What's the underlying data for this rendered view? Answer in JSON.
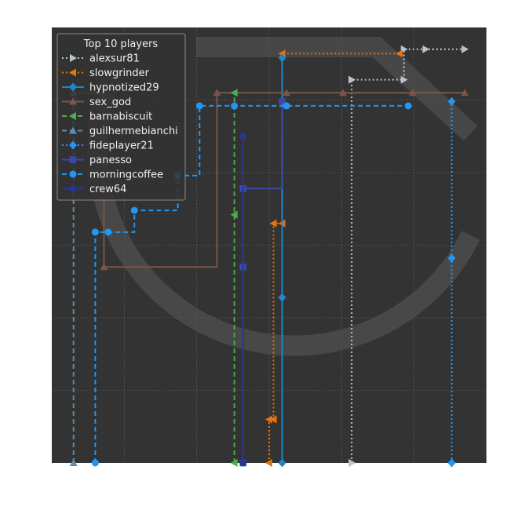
{
  "chart_data": {
    "type": "line",
    "title": "",
    "xlabel": "",
    "ylabel": "",
    "grid": true,
    "background_color": "#333333",
    "legend": {
      "title": "Top 10 players",
      "placement": "top-left"
    },
    "xlim": [
      0,
      100
    ],
    "ylim": [
      0,
      100
    ],
    "series": [
      {
        "name": "alexsur81",
        "color": "#b8c4cc",
        "style": "dotted",
        "marker": "triangle-right",
        "x": [
          69,
          69,
          81,
          81,
          86,
          95
        ],
        "y": [
          0,
          88,
          88,
          95,
          95,
          95
        ]
      },
      {
        "name": "slowgrinder",
        "color": "#e8720c",
        "style": "dotted",
        "marker": "triangle-left",
        "x": [
          50,
          50,
          51,
          51,
          53,
          53,
          80
        ],
        "y": [
          0,
          10,
          10,
          55,
          55,
          94,
          94
        ]
      },
      {
        "name": "hypnotized29",
        "color": "#1e88c8",
        "style": "solid",
        "marker": "diamond",
        "x": [
          53,
          53,
          53,
          53
        ],
        "y": [
          0,
          38,
          83,
          93
        ]
      },
      {
        "name": "sex_god",
        "color": "#7a5548",
        "style": "solid",
        "marker": "triangle-up",
        "x": [
          5,
          12,
          12,
          38,
          54,
          67,
          83,
          95
        ],
        "y": [
          85,
          85,
          45,
          85,
          85,
          85,
          85,
          85
        ]
      },
      {
        "name": "barnabiscuit",
        "color": "#4cae4c",
        "style": "dashed",
        "marker": "triangle-left",
        "x": [
          42,
          42,
          42
        ],
        "y": [
          0,
          57,
          85
        ]
      },
      {
        "name": "guilhermebianchi",
        "color": "#5c8da8",
        "style": "dashed",
        "marker": "triangle-up",
        "x": [
          5,
          5
        ],
        "y": [
          0,
          85
        ]
      },
      {
        "name": "fideplayer21",
        "color": "#2196f3",
        "style": "dotted",
        "marker": "diamond",
        "x": [
          92,
          92,
          92
        ],
        "y": [
          0,
          47,
          83
        ]
      },
      {
        "name": "panesso",
        "color": "#3949ab",
        "style": "solid",
        "marker": "square",
        "x": [
          44,
          44,
          44,
          53
        ],
        "y": [
          0,
          45,
          63,
          83
        ]
      },
      {
        "name": "morningcoffee",
        "color": "#2196f3",
        "style": "dashed",
        "marker": "circle",
        "x": [
          10,
          10,
          13,
          19,
          29,
          34,
          42,
          54,
          82
        ],
        "y": [
          0,
          53,
          53,
          58,
          66,
          82,
          82,
          82,
          82
        ]
      },
      {
        "name": "crew64",
        "color": "#283593",
        "style": "solid",
        "marker": "circle",
        "x": [
          44,
          44
        ],
        "y": [
          0,
          75
        ]
      }
    ]
  }
}
